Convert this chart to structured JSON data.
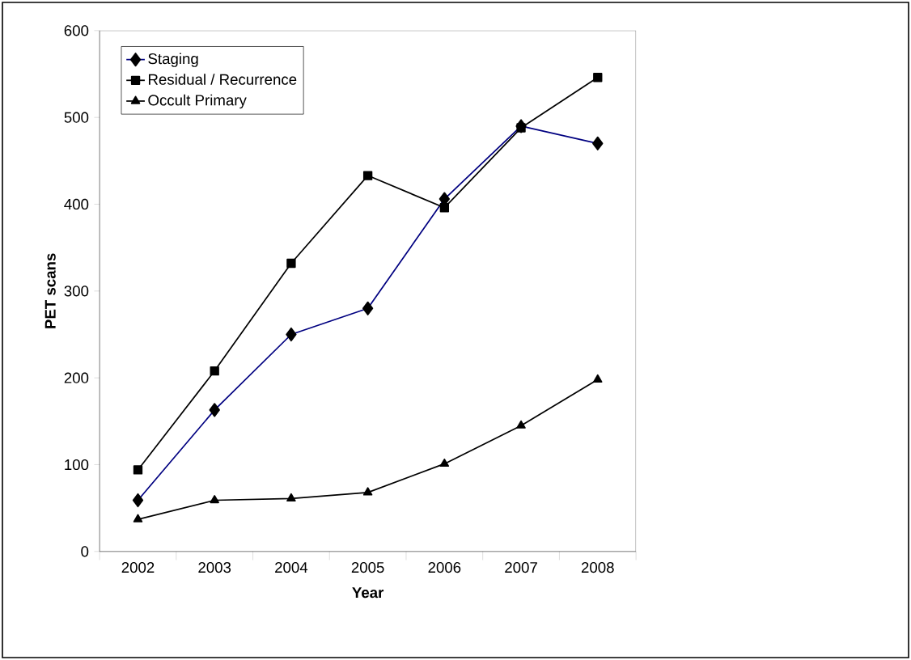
{
  "chart_data": {
    "type": "line",
    "xlabel": "Year",
    "ylabel": "PET scans",
    "categories": [
      "2002",
      "2003",
      "2004",
      "2005",
      "2006",
      "2007",
      "2008"
    ],
    "series": [
      {
        "name": "Staging",
        "color": "#000080",
        "marker": "diamond",
        "values": [
          59,
          163,
          250,
          280,
          406,
          490,
          470
        ]
      },
      {
        "name": "Residual / Recurrence",
        "color": "#000000",
        "marker": "square",
        "values": [
          94,
          208,
          332,
          433,
          396,
          488,
          546
        ]
      },
      {
        "name": "Occult Primary",
        "color": "#000000",
        "marker": "triangle",
        "values": [
          37,
          59,
          61,
          68,
          101,
          145,
          198
        ]
      }
    ],
    "ylim": [
      0,
      600
    ],
    "yticks": [
      0,
      100,
      200,
      300,
      400,
      500,
      600
    ],
    "legend": "top left",
    "grid": false
  }
}
